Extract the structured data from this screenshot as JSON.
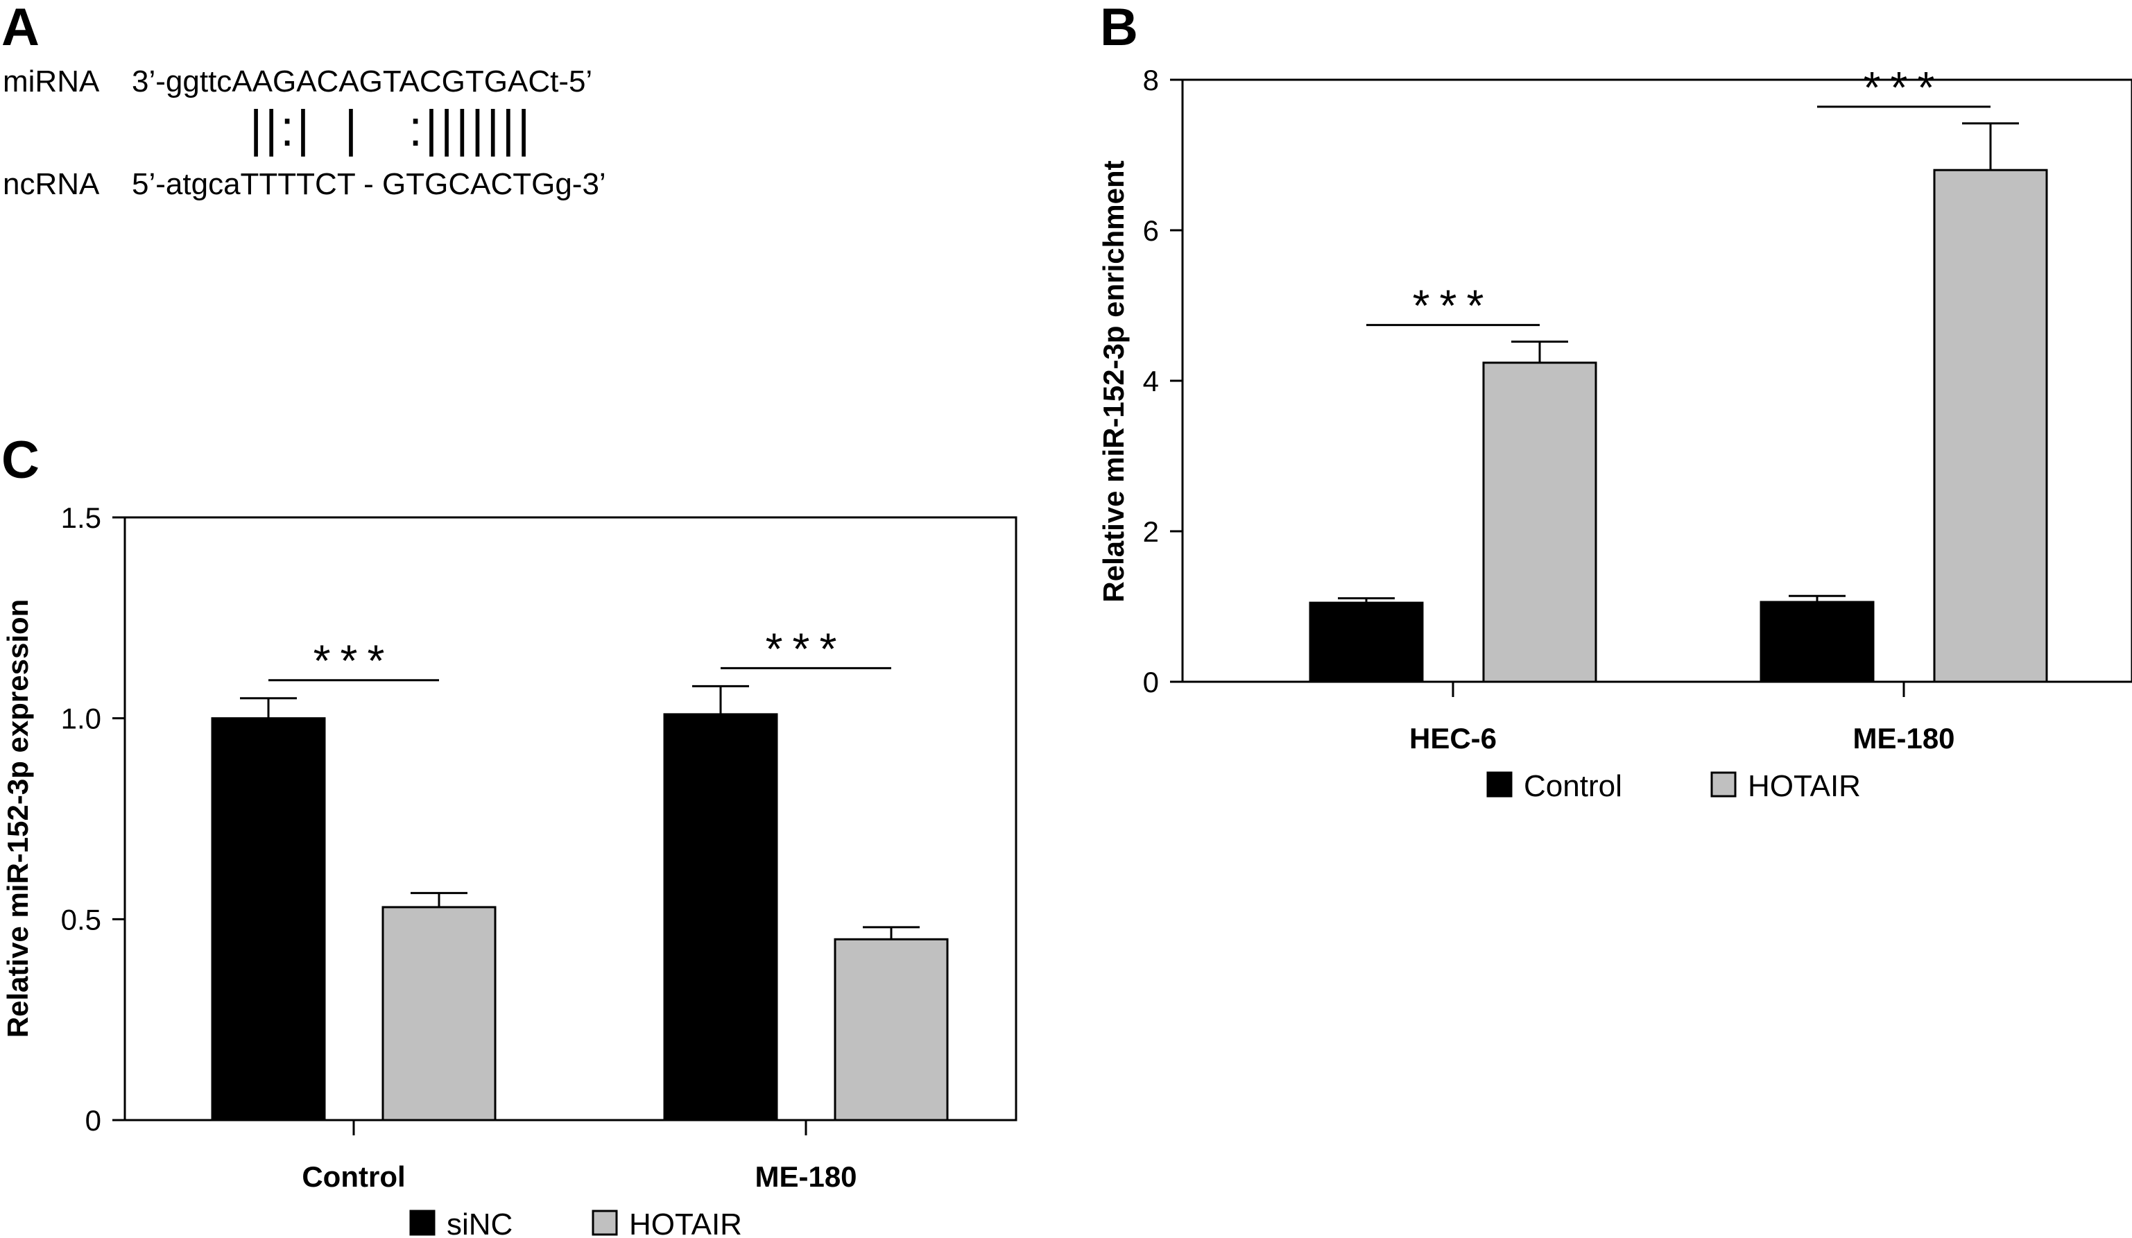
{
  "panel_a": {
    "letter": "A",
    "mirna_label": "miRNA",
    "mirna_seq": "3’-ggttcAAGACAGTACGTGACt-5’",
    "pairing": "||:|  |   :|||||||",
    "ncrna_label": "ncRNA",
    "ncrna_seq": "5’-atgcaTTTTCT - GTGCACTGg-3’"
  },
  "chart_data": [
    {
      "panel": "B",
      "type": "bar",
      "ylabel": "Relative miR-152-3p enrichment",
      "xlabel": "",
      "categories": [
        "HEC-6",
        "ME-180"
      ],
      "ylim": [
        0,
        8
      ],
      "yticks": [
        0,
        2,
        4,
        6,
        8
      ],
      "series": [
        {
          "name": "Control",
          "color": "#000000",
          "values": [
            1.05,
            1.06
          ],
          "errors": [
            0.06,
            0.08
          ]
        },
        {
          "name": "HOTAIR",
          "color": "#c0c0c0",
          "values": [
            4.24,
            6.8
          ],
          "errors": [
            0.28,
            0.62
          ]
        }
      ],
      "significance": [
        "***",
        "***"
      ],
      "legend_position": "bottom"
    },
    {
      "panel": "C",
      "type": "bar",
      "ylabel": "Relative miR-152-3p expression",
      "xlabel": "",
      "categories": [
        "Control",
        "ME-180"
      ],
      "ylim": [
        0,
        1.5
      ],
      "yticks": [
        0,
        0.5,
        1.0,
        1.5
      ],
      "ytick_labels": [
        "0",
        "0.5",
        "1.0",
        "1.5"
      ],
      "series": [
        {
          "name": "siNC",
          "color": "#000000",
          "values": [
            1.0,
            1.01
          ],
          "errors": [
            0.05,
            0.07
          ]
        },
        {
          "name": "HOTAIR",
          "color": "#c0c0c0",
          "values": [
            0.53,
            0.45
          ],
          "errors": [
            0.035,
            0.03
          ]
        }
      ],
      "significance": [
        "***",
        "***"
      ],
      "legend_position": "bottom"
    }
  ]
}
